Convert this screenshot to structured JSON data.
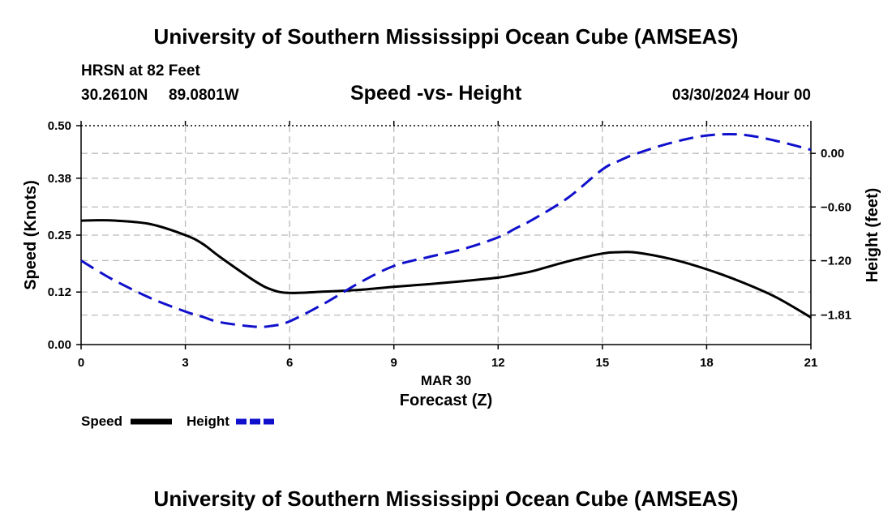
{
  "header": {
    "title_top": "University of Southern Mississippi Ocean Cube (AMSEAS)",
    "title_bottom": "University of Southern Mississippi Ocean Cube (AMSEAS)",
    "station": "HRSN at 82 Feet",
    "lat": "30.2610N",
    "lon": "89.0801W",
    "chart_title": "Speed -vs- Height",
    "datetime": "03/30/2024 Hour 00"
  },
  "legend": {
    "speed_label": "Speed",
    "height_label": "Height"
  },
  "colors": {
    "speed": "#000000",
    "height": "#1010cc",
    "grid": "#bbbbbb"
  },
  "chart_data": {
    "type": "line",
    "title": "Speed -vs- Height",
    "xlabel": "Forecast (Z)",
    "xsublabel": "MAR 30",
    "ylabel": "Speed (Knots)",
    "y2label": "Height (feet)",
    "xlim": [
      0,
      21
    ],
    "ylim": [
      0,
      0.5
    ],
    "y2lim": [
      -2.14,
      0.31
    ],
    "xticks": [
      "0",
      "3",
      "6",
      "9",
      "12",
      "15",
      "18",
      "21"
    ],
    "yticks": [
      "0.00",
      "0.12",
      "0.25",
      "0.38",
      "0.50"
    ],
    "y2ticks": [
      "0.00",
      "-0.60",
      "-1.20",
      "-1.81"
    ],
    "x": [
      0,
      0.5,
      1,
      2,
      3,
      3.5,
      4,
      5,
      5.5,
      6,
      7,
      8,
      9,
      10,
      11,
      12,
      12.5,
      13,
      14,
      15,
      15.5,
      16,
      17,
      18,
      19,
      20,
      21
    ],
    "series": [
      {
        "name": "Speed",
        "axis": "left",
        "values": [
          0.283,
          0.284,
          0.283,
          0.275,
          0.25,
          0.23,
          0.2,
          0.145,
          0.125,
          0.118,
          0.121,
          0.125,
          0.132,
          0.138,
          0.145,
          0.153,
          0.16,
          0.168,
          0.19,
          0.208,
          0.211,
          0.21,
          0.195,
          0.172,
          0.143,
          0.108,
          0.062
        ]
      },
      {
        "name": "Height",
        "axis": "right",
        "values": [
          -1.2,
          -1.32,
          -1.43,
          -1.62,
          -1.77,
          -1.83,
          -1.89,
          -1.94,
          -1.93,
          -1.88,
          -1.68,
          -1.45,
          -1.26,
          -1.16,
          -1.07,
          -0.94,
          -0.84,
          -0.74,
          -0.5,
          -0.18,
          -0.08,
          0.0,
          0.12,
          0.2,
          0.21,
          0.14,
          0.04
        ]
      }
    ]
  }
}
